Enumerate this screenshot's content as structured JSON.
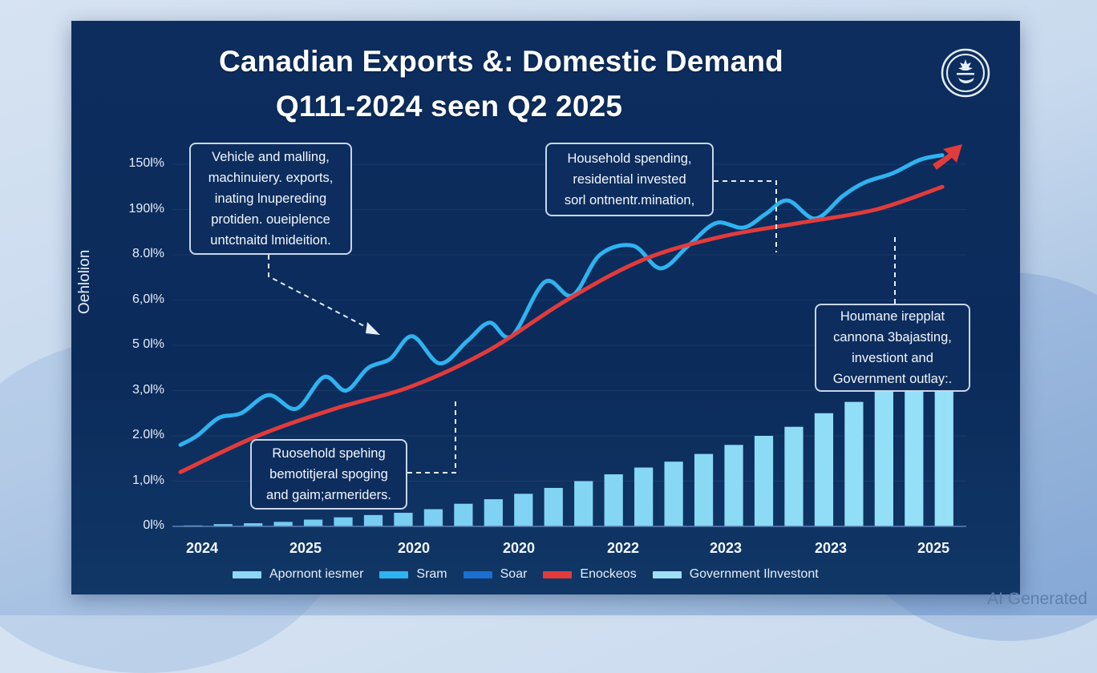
{
  "title": {
    "line1": "Canadian Exports &: Domestic Demand",
    "line2": "Q111-2024 seen Q2 2025"
  },
  "logo": {
    "icon": "maple-leaf-emblem-icon"
  },
  "watermark": "AI Generated",
  "annotations": [
    {
      "id": "exports-note",
      "lines": [
        "Vehicle and malling,",
        "machinuiery. exports,",
        "inating lnupereding",
        "protiden. oueiplence",
        "untctnaitd lmideition."
      ]
    },
    {
      "id": "household-top-note",
      "lines": [
        "Household spending,",
        "residential invested",
        "sorl ontnentr.mination,"
      ]
    },
    {
      "id": "government-note",
      "lines": [
        "Houmane irepplat",
        "cannona 3bajasting,",
        "investiont and",
        "Government outlay:."
      ]
    },
    {
      "id": "household-bottom-note",
      "lines": [
        "Ruosehold spehing",
        "bemotitjeral spoging",
        "and gaim;armeriders."
      ]
    }
  ],
  "colors": {
    "background_panel": "#0c2d5e",
    "bars": "#7dd3f5",
    "blue_line": "#2fb3f0",
    "red_line": "#e23b3b",
    "axis_text": "#e8eef8"
  },
  "chart_data": {
    "type": "line",
    "title": "Canadian Exports &: Domestic Demand Q111-2024 seen Q2 2025",
    "xlabel": "",
    "ylabel": "Oehlolion",
    "y_tick_labels": [
      "0l%",
      "1,0l%",
      "2.0l%",
      "3,0l%",
      "5 0l%",
      "6,0l%",
      "8.0l%",
      "190l%",
      "150l%"
    ],
    "y_axis_note": "tick labels are non-monotonic; values below are expressed in tick-row units (0 = '0l%' row, 8 = '150l%' row)",
    "ylim": [
      0,
      8
    ],
    "x_tick_labels": [
      "2024",
      "2025",
      "2020",
      "2020",
      "2022",
      "2023",
      "2023",
      "2025"
    ],
    "grid": true,
    "legend_position": "bottom",
    "legend": [
      {
        "label": "Apornont iesmer",
        "color": "#8ed8f5",
        "kind": "bar"
      },
      {
        "label": "Sram",
        "color": "#2fb3f0",
        "kind": "line"
      },
      {
        "label": "Soar",
        "color": "#1a6fd1",
        "kind": "line"
      },
      {
        "label": "Enockeos",
        "color": "#e23b3b",
        "kind": "line"
      },
      {
        "label": "Government Ilnvestont",
        "color": "#9fe0f7",
        "kind": "bar"
      }
    ],
    "series": [
      {
        "name": "Sram",
        "kind": "line",
        "color": "#2fb3f0",
        "x": [
          0,
          0.15,
          0.35,
          0.55,
          0.8,
          1.05,
          1.3,
          1.5,
          1.7,
          1.9,
          2.1,
          2.35,
          2.6,
          2.8,
          3.0,
          3.3,
          3.55,
          3.8,
          4.1,
          4.35,
          4.6,
          4.85,
          5.1,
          5.3,
          5.5,
          5.75,
          6.0,
          6.2,
          6.45,
          6.7,
          6.9
        ],
        "values": [
          1.8,
          2.0,
          2.4,
          2.5,
          2.9,
          2.6,
          3.3,
          3.0,
          3.5,
          3.7,
          4.2,
          3.6,
          4.1,
          4.5,
          4.2,
          5.4,
          5.1,
          6.0,
          6.2,
          5.7,
          6.2,
          6.7,
          6.6,
          6.9,
          7.2,
          6.8,
          7.3,
          7.6,
          7.8,
          8.1,
          8.2
        ]
      },
      {
        "name": "Enockeos",
        "kind": "line",
        "color": "#e23b3b",
        "x": [
          0,
          0.7,
          1.4,
          2.1,
          2.8,
          3.5,
          4.2,
          4.9,
          5.6,
          6.3,
          6.9
        ],
        "values": [
          1.2,
          2.0,
          2.6,
          3.1,
          3.9,
          5.0,
          5.9,
          6.4,
          6.7,
          7.0,
          7.5
        ]
      },
      {
        "name": "Government Ilnvestont",
        "kind": "bar",
        "color": "#8ed8f5",
        "values": [
          0.02,
          0.05,
          0.07,
          0.1,
          0.15,
          0.2,
          0.25,
          0.3,
          0.38,
          0.5,
          0.6,
          0.72,
          0.85,
          1.0,
          1.15,
          1.3,
          1.43,
          1.6,
          1.8,
          2.0,
          2.2,
          2.5,
          2.75,
          3.05,
          3.4,
          3.75
        ]
      }
    ]
  }
}
